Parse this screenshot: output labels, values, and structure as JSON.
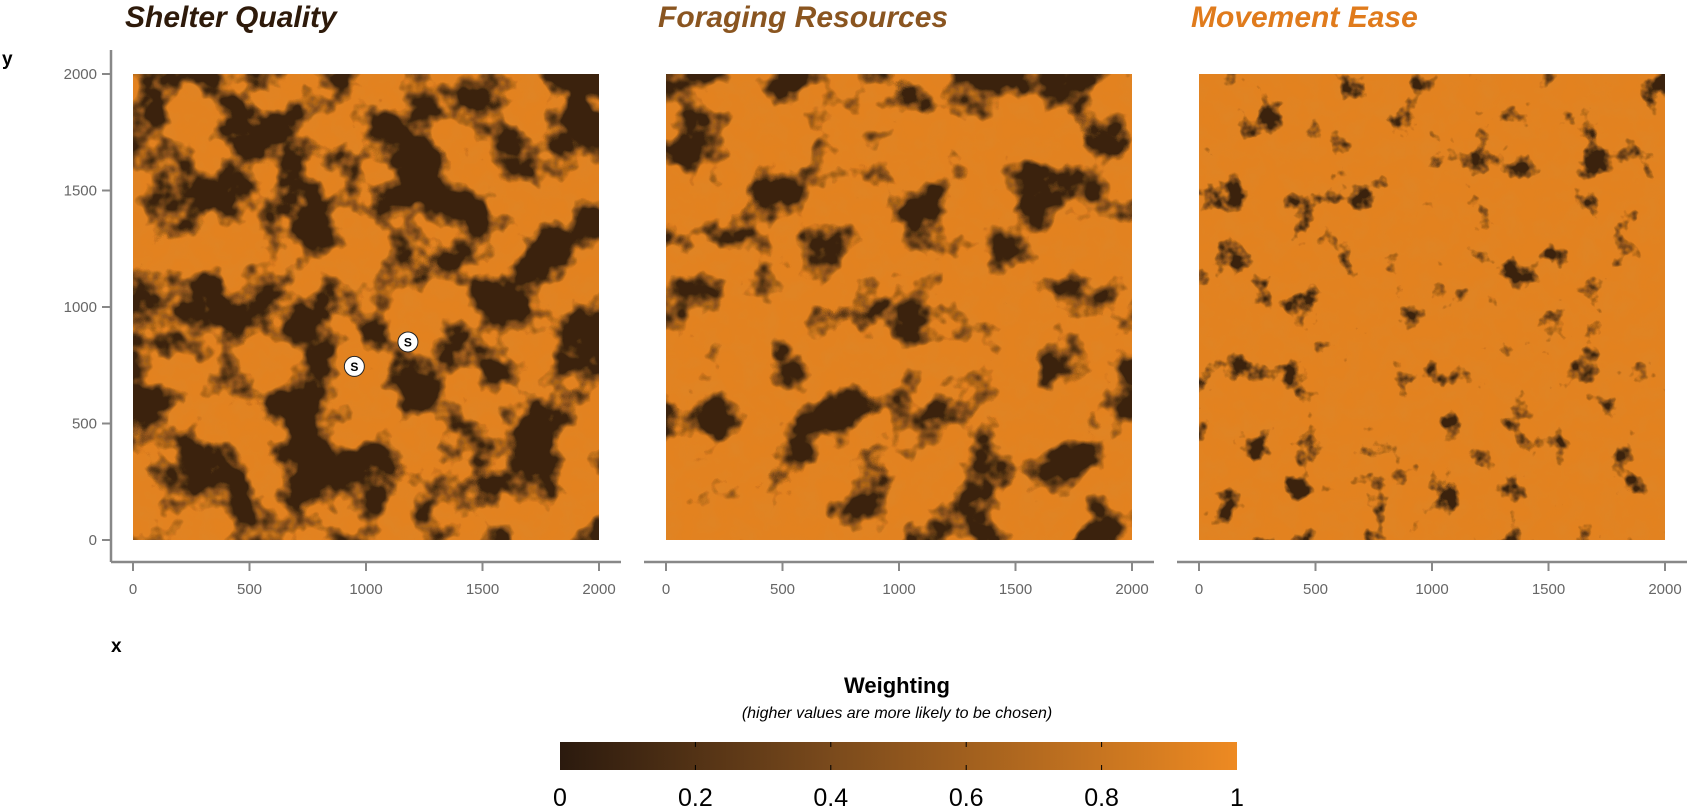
{
  "chart_data": {
    "type": "heatmap",
    "panels": [
      {
        "title": "Shelter Quality",
        "title_color": "#2e1a0a",
        "dark_fraction": 0.45,
        "blob_scale": "medium",
        "markers": [
          {
            "label": "S",
            "x": 950,
            "y": 745
          },
          {
            "label": "S",
            "x": 1180,
            "y": 850
          }
        ]
      },
      {
        "title": "Foraging Resources",
        "title_color": "#8a5520",
        "dark_fraction": 0.3,
        "blob_scale": "medium",
        "markers": []
      },
      {
        "title": "Movement Ease",
        "title_color": "#e07b1c",
        "dark_fraction": 0.08,
        "blob_scale": "small",
        "markers": []
      }
    ],
    "x_ticks": [
      "0",
      "500",
      "1000",
      "1500",
      "2000"
    ],
    "y_ticks": [
      "0",
      "500",
      "1000",
      "1500",
      "2000"
    ],
    "xlim": [
      0,
      2000
    ],
    "ylim": [
      0,
      2000
    ],
    "xlabel": "x",
    "ylabel": "y",
    "legend": {
      "title": "Weighting",
      "subtitle": "(higher values are more likely to be chosen)",
      "ticks": [
        "0",
        "0.2",
        "0.4",
        "0.6",
        "0.8",
        "1"
      ],
      "range": [
        0,
        1
      ],
      "low_color": "#2b1a0e",
      "high_color": "#ee8a22",
      "placement": "bottom-center"
    },
    "colors": {
      "dark": "#3a2410",
      "light": "#e3821f",
      "axis": "#888888",
      "tick_text": "#666666"
    }
  }
}
